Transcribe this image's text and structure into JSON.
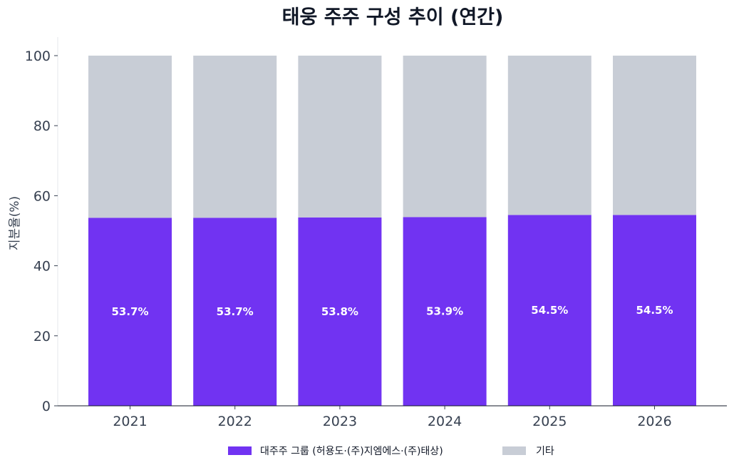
{
  "chart_data": {
    "type": "bar",
    "stacked": true,
    "title": "태웅 주주 구성 추이 (연간)",
    "xlabel": "",
    "ylabel": "지분율(%)",
    "ylim": [
      0,
      100
    ],
    "yticks": [
      0,
      20,
      40,
      60,
      80,
      100
    ],
    "categories": [
      "2021",
      "2022",
      "2023",
      "2024",
      "2025",
      "2026"
    ],
    "series": [
      {
        "name": "대주주 그룹 (허용도·(주)지엠에스·(주)태상)",
        "values": [
          53.7,
          53.7,
          53.8,
          53.9,
          54.5,
          54.5
        ],
        "labels": [
          "53.7%",
          "53.7%",
          "53.8%",
          "53.9%",
          "54.5%",
          "54.5%"
        ],
        "color": "#7133f2"
      },
      {
        "name": "기타",
        "values": [
          46.3,
          46.3,
          46.2,
          46.1,
          45.5,
          45.5
        ],
        "color": "#c8cdd6"
      }
    ],
    "grid": false,
    "legend": "bottom-center"
  }
}
